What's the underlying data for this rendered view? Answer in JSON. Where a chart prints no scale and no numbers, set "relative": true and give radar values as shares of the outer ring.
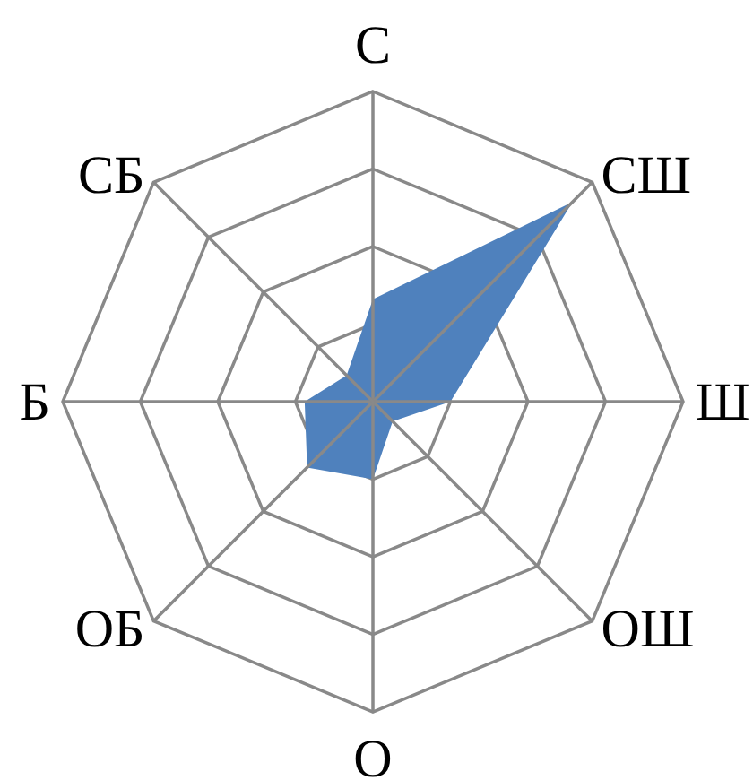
{
  "chart_data": {
    "type": "radar",
    "categories": [
      "С",
      "СШ",
      "Ш",
      "ОШ",
      "О",
      "ОБ",
      "Б",
      "СБ"
    ],
    "relative": true,
    "series": [
      {
        "color": "#4f81bd",
        "values": [
          0.33,
          0.91,
          0.25,
          0.09,
          0.25,
          0.3,
          0.22,
          0.12
        ]
      }
    ],
    "grid": true,
    "legend": false,
    "marker": "none"
  }
}
